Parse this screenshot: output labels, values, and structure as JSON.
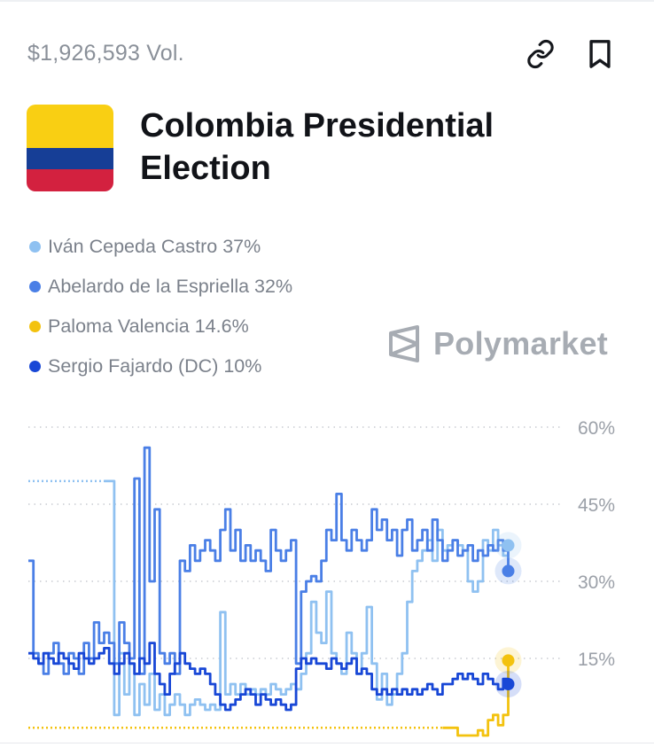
{
  "header": {
    "volume": "$1,926,593 Vol.",
    "link_icon": "link-icon",
    "bookmark_icon": "bookmark-icon"
  },
  "market": {
    "title": "Colombia Presidential Election",
    "flag_colors": [
      "#f9cf13",
      "#163e96",
      "#d3213f"
    ]
  },
  "legend": [
    {
      "label": "Iván Cepeda Castro 37%",
      "color": "#8fc1f1"
    },
    {
      "label": "Abelardo de la Espriella 32%",
      "color": "#4a7fe6"
    },
    {
      "label": "Paloma Valencia 14.6%",
      "color": "#f3c20e"
    },
    {
      "label": "Sergio Fajardo (DC) 10%",
      "color": "#1847d6"
    }
  ],
  "brand": {
    "name": "Polymarket",
    "icon": "polymarket-logo-icon"
  },
  "chart_data": {
    "type": "line",
    "y_ticks": [
      "60%",
      "45%",
      "30%",
      "15%"
    ],
    "ylim": [
      0,
      60
    ],
    "xlim": [
      0,
      100
    ],
    "grid": true,
    "series": [
      {
        "name": "Iván Cepeda Castro",
        "color": "#8fc1f1",
        "current": 37,
        "dotted_prefix": [
          [
            0,
            49.5
          ],
          [
            15,
            49.5
          ]
        ],
        "points": [
          [
            15,
            49.5
          ],
          [
            16,
            49.5
          ],
          [
            17,
            4
          ],
          [
            18,
            16
          ],
          [
            19,
            8
          ],
          [
            20,
            14
          ],
          [
            21,
            4
          ],
          [
            22,
            10
          ],
          [
            23,
            6
          ],
          [
            24,
            12
          ],
          [
            25,
            5
          ],
          [
            26,
            8
          ],
          [
            27,
            4
          ],
          [
            28,
            6
          ],
          [
            29,
            8
          ],
          [
            30,
            6
          ],
          [
            31,
            4
          ],
          [
            32,
            6
          ],
          [
            33,
            7
          ],
          [
            34,
            6
          ],
          [
            35,
            5
          ],
          [
            36,
            6
          ],
          [
            37,
            5
          ],
          [
            38,
            24
          ],
          [
            39,
            8
          ],
          [
            40,
            10
          ],
          [
            41,
            8
          ],
          [
            42,
            10
          ],
          [
            43,
            8
          ],
          [
            44,
            9
          ],
          [
            45,
            8
          ],
          [
            46,
            9
          ],
          [
            47,
            8
          ],
          [
            48,
            10
          ],
          [
            49,
            9
          ],
          [
            50,
            8
          ],
          [
            51,
            9
          ],
          [
            52,
            10
          ],
          [
            53,
            9
          ],
          [
            54,
            12
          ],
          [
            55,
            16
          ],
          [
            56,
            26
          ],
          [
            57,
            20
          ],
          [
            58,
            18
          ],
          [
            59,
            28
          ],
          [
            60,
            16
          ],
          [
            61,
            14
          ],
          [
            62,
            12
          ],
          [
            63,
            20
          ],
          [
            64,
            16
          ],
          [
            65,
            12
          ],
          [
            66,
            16
          ],
          [
            67,
            25
          ],
          [
            68,
            14
          ],
          [
            69,
            7
          ],
          [
            70,
            12
          ],
          [
            71,
            6
          ],
          [
            72,
            8
          ],
          [
            73,
            12
          ],
          [
            74,
            16
          ],
          [
            75,
            26
          ],
          [
            76,
            32
          ],
          [
            77,
            34
          ],
          [
            78,
            36
          ],
          [
            79,
            38
          ],
          [
            80,
            34
          ],
          [
            81,
            40
          ],
          [
            82,
            36
          ],
          [
            83,
            37
          ],
          [
            84,
            38
          ],
          [
            85,
            37
          ],
          [
            86,
            36
          ],
          [
            87,
            30
          ],
          [
            88,
            28
          ],
          [
            89,
            30
          ],
          [
            90,
            38
          ],
          [
            91,
            36
          ],
          [
            92,
            40
          ],
          [
            93,
            37
          ],
          [
            94,
            35
          ],
          [
            95,
            37
          ]
        ]
      },
      {
        "name": "Abelardo de la Espriella",
        "color": "#4a7fe6",
        "current": 32,
        "points": [
          [
            0,
            34
          ],
          [
            1,
            16
          ],
          [
            2,
            14
          ],
          [
            3,
            12
          ],
          [
            4,
            16
          ],
          [
            5,
            18
          ],
          [
            6,
            14
          ],
          [
            7,
            12
          ],
          [
            8,
            16
          ],
          [
            9,
            15
          ],
          [
            10,
            12
          ],
          [
            11,
            18
          ],
          [
            12,
            15
          ],
          [
            13,
            22
          ],
          [
            14,
            18
          ],
          [
            15,
            20
          ],
          [
            16,
            18
          ],
          [
            17,
            14
          ],
          [
            18,
            22
          ],
          [
            19,
            18
          ],
          [
            20,
            15
          ],
          [
            21,
            50
          ],
          [
            22,
            12
          ],
          [
            23,
            56
          ],
          [
            24,
            30
          ],
          [
            25,
            44
          ],
          [
            26,
            16
          ],
          [
            27,
            14
          ],
          [
            28,
            16
          ],
          [
            29,
            12
          ],
          [
            30,
            34
          ],
          [
            31,
            32
          ],
          [
            32,
            37
          ],
          [
            33,
            34
          ],
          [
            34,
            36
          ],
          [
            35,
            38
          ],
          [
            36,
            36
          ],
          [
            37,
            34
          ],
          [
            38,
            40
          ],
          [
            39,
            44
          ],
          [
            40,
            36
          ],
          [
            41,
            40
          ],
          [
            42,
            34
          ],
          [
            43,
            37
          ],
          [
            44,
            34
          ],
          [
            45,
            36
          ],
          [
            46,
            34
          ],
          [
            47,
            32
          ],
          [
            48,
            40
          ],
          [
            49,
            36
          ],
          [
            50,
            34
          ],
          [
            51,
            36
          ],
          [
            52,
            38
          ],
          [
            53,
            14
          ],
          [
            54,
            28
          ],
          [
            55,
            30
          ],
          [
            56,
            31
          ],
          [
            57,
            30
          ],
          [
            58,
            34
          ],
          [
            59,
            40
          ],
          [
            60,
            38
          ],
          [
            61,
            47
          ],
          [
            62,
            38
          ],
          [
            63,
            36
          ],
          [
            64,
            40
          ],
          [
            65,
            38
          ],
          [
            66,
            36
          ],
          [
            67,
            38
          ],
          [
            68,
            44
          ],
          [
            69,
            40
          ],
          [
            70,
            42
          ],
          [
            71,
            38
          ],
          [
            72,
            40
          ],
          [
            73,
            35
          ],
          [
            74,
            40
          ],
          [
            75,
            42
          ],
          [
            76,
            36
          ],
          [
            77,
            38
          ],
          [
            78,
            40
          ],
          [
            79,
            36
          ],
          [
            80,
            42
          ],
          [
            81,
            38
          ],
          [
            82,
            34
          ],
          [
            83,
            36
          ],
          [
            84,
            38
          ],
          [
            85,
            35
          ],
          [
            86,
            36
          ],
          [
            87,
            37
          ],
          [
            88,
            34
          ],
          [
            89,
            36
          ],
          [
            90,
            35
          ],
          [
            91,
            37
          ],
          [
            92,
            36
          ],
          [
            93,
            38
          ],
          [
            94,
            36
          ],
          [
            95,
            32
          ]
        ]
      },
      {
        "name": "Paloma Valencia",
        "color": "#f3c20e",
        "current": 14.6,
        "dotted_prefix": [
          [
            0,
            1.5
          ],
          [
            82,
            1.5
          ]
        ],
        "points": [
          [
            82,
            1.5
          ],
          [
            84,
            1.5
          ],
          [
            85,
            0
          ],
          [
            86,
            0
          ],
          [
            87,
            0
          ],
          [
            88,
            0
          ],
          [
            89,
            1
          ],
          [
            90,
            0
          ],
          [
            91,
            3
          ],
          [
            92,
            4
          ],
          [
            93,
            2
          ],
          [
            94,
            4
          ],
          [
            95,
            14.6
          ]
        ]
      },
      {
        "name": "Sergio Fajardo (DC)",
        "color": "#1847d6",
        "current": 10,
        "points": [
          [
            0,
            16
          ],
          [
            1,
            15
          ],
          [
            2,
            14
          ],
          [
            3,
            16
          ],
          [
            4,
            15
          ],
          [
            5,
            14
          ],
          [
            6,
            16
          ],
          [
            7,
            15
          ],
          [
            8,
            14
          ],
          [
            9,
            13
          ],
          [
            10,
            16
          ],
          [
            11,
            15
          ],
          [
            12,
            14
          ],
          [
            13,
            15
          ],
          [
            14,
            16
          ],
          [
            15,
            17
          ],
          [
            16,
            14
          ],
          [
            17,
            12
          ],
          [
            18,
            14
          ],
          [
            19,
            16
          ],
          [
            20,
            14
          ],
          [
            21,
            12
          ],
          [
            22,
            15
          ],
          [
            23,
            14
          ],
          [
            24,
            18
          ],
          [
            25,
            12
          ],
          [
            26,
            10
          ],
          [
            27,
            8
          ],
          [
            28,
            12
          ],
          [
            29,
            14
          ],
          [
            30,
            16
          ],
          [
            31,
            14
          ],
          [
            32,
            13
          ],
          [
            33,
            12
          ],
          [
            34,
            13
          ],
          [
            35,
            12
          ],
          [
            36,
            10
          ],
          [
            37,
            8
          ],
          [
            38,
            6
          ],
          [
            39,
            5
          ],
          [
            40,
            6
          ],
          [
            41,
            7
          ],
          [
            42,
            8
          ],
          [
            43,
            9
          ],
          [
            44,
            8
          ],
          [
            45,
            6
          ],
          [
            46,
            8
          ],
          [
            47,
            7
          ],
          [
            48,
            6
          ],
          [
            49,
            7
          ],
          [
            50,
            6
          ],
          [
            51,
            5
          ],
          [
            52,
            6
          ],
          [
            53,
            13
          ],
          [
            54,
            15
          ],
          [
            55,
            14
          ],
          [
            56,
            15
          ],
          [
            57,
            14
          ],
          [
            58,
            14
          ],
          [
            59,
            13
          ],
          [
            60,
            15
          ],
          [
            61,
            14
          ],
          [
            62,
            13
          ],
          [
            63,
            14
          ],
          [
            64,
            15
          ],
          [
            65,
            12
          ],
          [
            66,
            13
          ],
          [
            67,
            12
          ],
          [
            68,
            9
          ],
          [
            69,
            8
          ],
          [
            70,
            9
          ],
          [
            71,
            8
          ],
          [
            72,
            9
          ],
          [
            73,
            8
          ],
          [
            74,
            9
          ],
          [
            75,
            8
          ],
          [
            76,
            9
          ],
          [
            77,
            8
          ],
          [
            78,
            9
          ],
          [
            79,
            10
          ],
          [
            80,
            9
          ],
          [
            81,
            8
          ],
          [
            82,
            10
          ],
          [
            83,
            10
          ],
          [
            84,
            11
          ],
          [
            85,
            12
          ],
          [
            86,
            11
          ],
          [
            87,
            12
          ],
          [
            88,
            11
          ],
          [
            89,
            10
          ],
          [
            90,
            12
          ],
          [
            91,
            11
          ],
          [
            92,
            10
          ],
          [
            93,
            9
          ],
          [
            94,
            11
          ],
          [
            95,
            10
          ]
        ]
      }
    ]
  }
}
